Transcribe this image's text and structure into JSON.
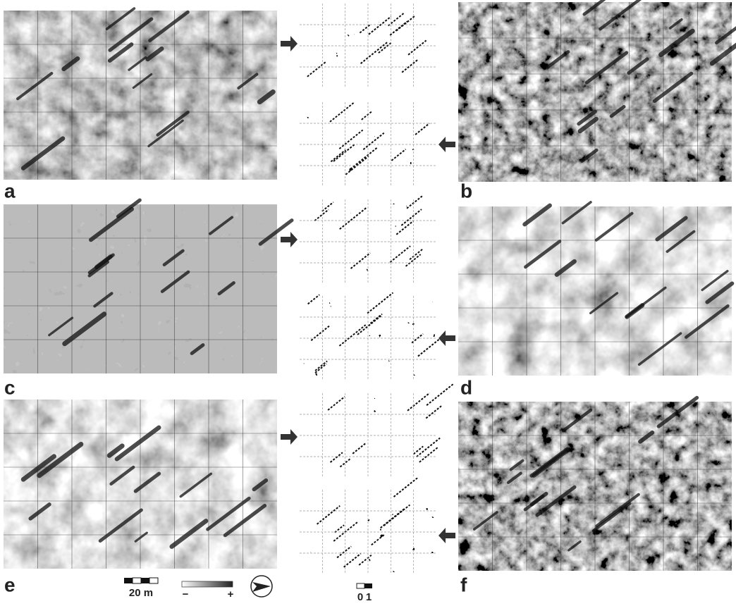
{
  "panels": [
    {
      "label": "a"
    },
    {
      "label": "b"
    },
    {
      "label": "c"
    },
    {
      "label": "d"
    },
    {
      "label": "e"
    },
    {
      "label": "f"
    }
  ],
  "scale_bar": {
    "label": "20 m"
  },
  "color_legend": {
    "min_label": "−",
    "max_label": "+"
  },
  "binary_legend": {
    "labels": [
      "0",
      "1"
    ]
  }
}
